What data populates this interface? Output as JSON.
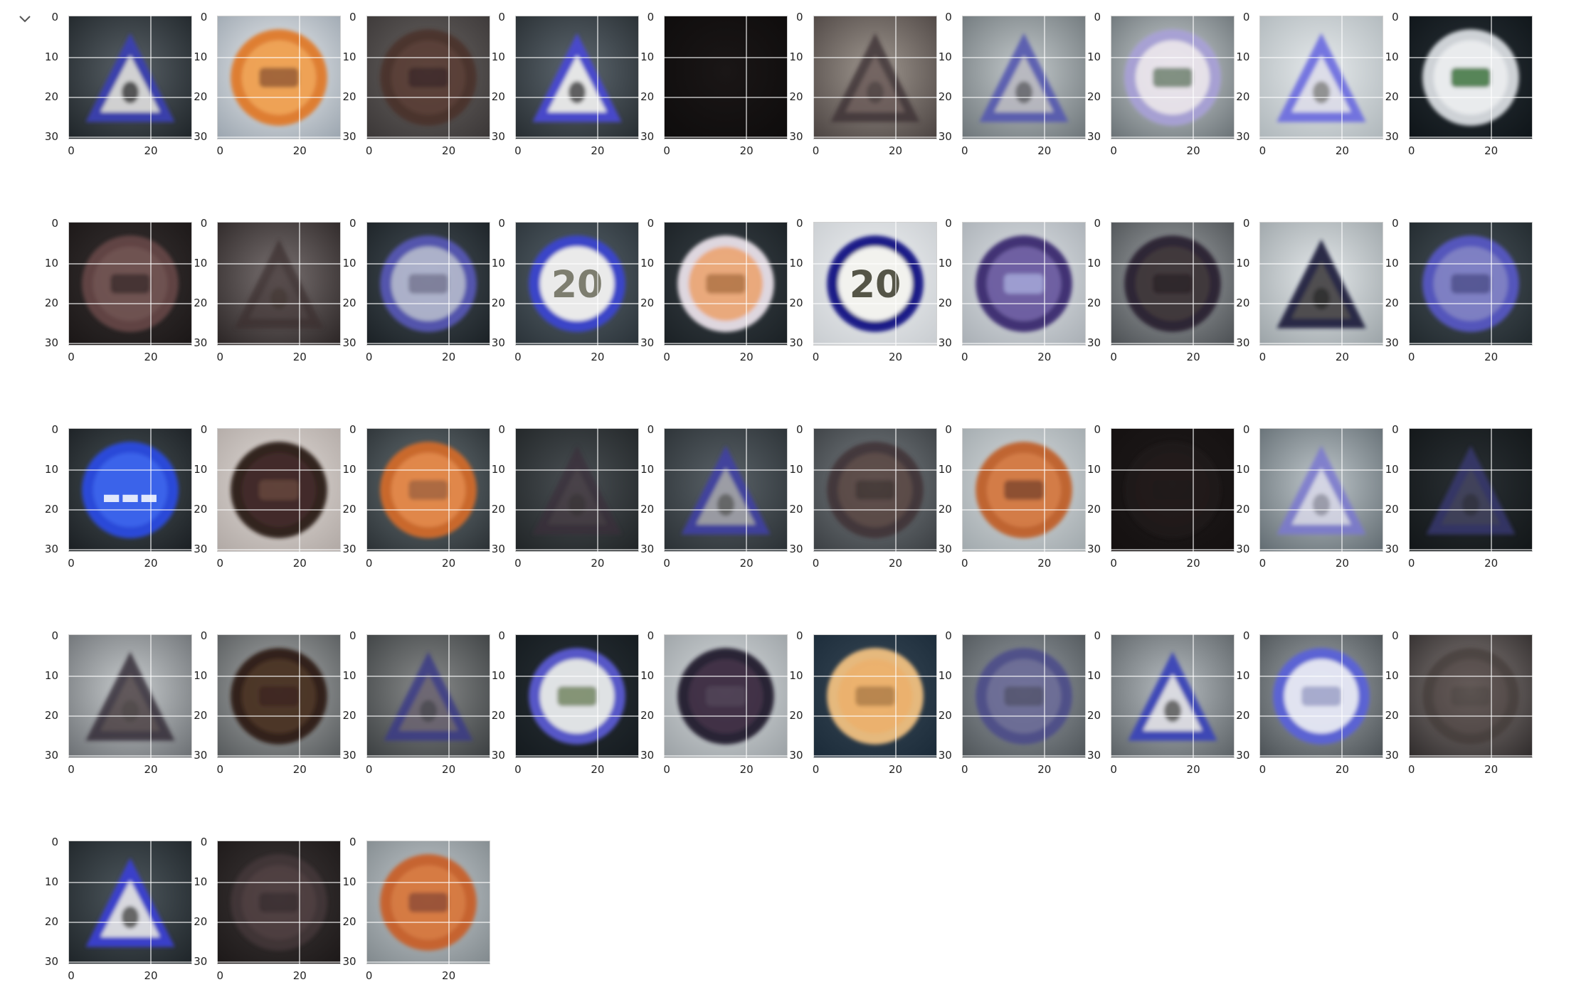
{
  "cell": {
    "collapse_icon": "chevron-down-icon"
  },
  "axes": {
    "y_ticks": [
      "0",
      "10",
      "20",
      "30"
    ],
    "x_ticks": [
      "0",
      "20"
    ]
  },
  "palette": {
    "grid": "#ffffff",
    "frame": "#d0d0d0",
    "tick_text": "#222222"
  },
  "images": [
    {
      "bg": [
        "#5a6268",
        "#1e2428"
      ],
      "shape": "triangle",
      "rim": "#3a3fb0",
      "fill": "#d8d8d8",
      "glyph": "#555555",
      "opacity": 0.95
    },
    {
      "bg": [
        "#eef0f2",
        "#9aa4ae"
      ],
      "shape": "circle",
      "rim": "#e07a2a",
      "fill": "#f0a050",
      "glyph": "#a06030",
      "opacity": 0.95
    },
    {
      "bg": [
        "#6a6664",
        "#3a3636"
      ],
      "shape": "circle",
      "rim": "#4a2e26",
      "fill": "#5a3a30",
      "glyph": "#3a2420",
      "opacity": 0.8
    },
    {
      "bg": [
        "#5e6870",
        "#262c30"
      ],
      "shape": "triangle",
      "rim": "#4a4ad0",
      "fill": "#ececec",
      "glyph": "#606060",
      "opacity": 0.95
    },
    {
      "bg": [
        "#1a1616",
        "#0e0c0c"
      ],
      "shape": "none",
      "rim": "#000000",
      "fill": "#000000",
      "glyph": "#000000",
      "opacity": 0
    },
    {
      "bg": [
        "#a09890",
        "#4a4240"
      ],
      "shape": "triangle",
      "rim": "#3c3236",
      "fill": "#6a5a58",
      "glyph": "#4a3e3c",
      "opacity": 0.8
    },
    {
      "bg": [
        "#c4cacc",
        "#6c7478"
      ],
      "shape": "triangle",
      "rim": "#5458b0",
      "fill": "#b8b8c0",
      "glyph": "#6a6a70",
      "opacity": 0.9
    },
    {
      "bg": [
        "#d0d6d8",
        "#687074"
      ],
      "shape": "circle",
      "rim": "#a8a0d8",
      "fill": "#ece6ee",
      "glyph": "#7a8a7a",
      "opacity": 0.9
    },
    {
      "bg": [
        "#e6eaec",
        "#aeb6ba"
      ],
      "shape": "triangle",
      "rim": "#6a6ae0",
      "fill": "#dcdce8",
      "glyph": "#8a8a8a",
      "opacity": 0.9
    },
    {
      "bg": [
        "#2a3238",
        "#0e1418"
      ],
      "shape": "circle",
      "rim": "#d8dce0",
      "fill": "#f4f6f8",
      "glyph": "#5a8a5a",
      "opacity": 0.95
    },
    {
      "bg": [
        "#3a3434",
        "#1a1616"
      ],
      "shape": "circle",
      "rim": "#6a4a4a",
      "fill": "#7a5a58",
      "glyph": "#4a3434",
      "opacity": 0.85
    },
    {
      "bg": [
        "#7a7272",
        "#2a2424"
      ],
      "shape": "triangle",
      "rim": "#3a2e2e",
      "fill": "#4a3e3c",
      "glyph": "#3a2e2c",
      "opacity": 0.7
    },
    {
      "bg": [
        "#48525a",
        "#1a2024"
      ],
      "shape": "circle",
      "rim": "#5a5ac0",
      "fill": "#c0c4e0",
      "glyph": "#8a8aa8",
      "opacity": 0.85
    },
    {
      "bg": [
        "#5a666e",
        "#2a3238"
      ],
      "shape": "circle",
      "rim": "#3a44c8",
      "fill": "#eaeaea",
      "glyph": "#6a6a5a",
      "opacity": 1,
      "label": "20"
    },
    {
      "bg": [
        "#3a4248",
        "#1a2024"
      ],
      "shape": "circle",
      "rim": "#e8e0e8",
      "fill": "#f4b080",
      "glyph": "#c08050",
      "opacity": 0.95
    },
    {
      "bg": [
        "#f0f2f4",
        "#c8ccd0"
      ],
      "shape": "circle",
      "rim": "#1a1e88",
      "fill": "#f2f2ee",
      "glyph": "#3a3a2a",
      "opacity": 1,
      "label": "20"
    },
    {
      "bg": [
        "#e0e4e8",
        "#a8aeb4"
      ],
      "shape": "circle",
      "rim": "#3a2a70",
      "fill": "#6a5aa0",
      "glyph": "#9a9ad0",
      "opacity": 0.95
    },
    {
      "bg": [
        "#a6aaac",
        "#4a4e52"
      ],
      "shape": "circle",
      "rim": "#2a2430",
      "fill": "#3e3438",
      "glyph": "#2a2426",
      "opacity": 0.95
    },
    {
      "bg": [
        "#e4e8ea",
        "#9aa2a6"
      ],
      "shape": "triangle",
      "rim": "#202440",
      "fill": "#4a4648",
      "glyph": "#2a2a2a",
      "opacity": 0.95
    },
    {
      "bg": [
        "#4a545c",
        "#20282c"
      ],
      "shape": "circle",
      "rim": "#5a5ad0",
      "fill": "#8a8ad8",
      "glyph": "#5a5aa0",
      "opacity": 0.85
    },
    {
      "bg": [
        "#4a5458",
        "#1a1e22"
      ],
      "shape": "circle",
      "rim": "#2a4ad8",
      "fill": "#3a64ea",
      "glyph": "#ffffff",
      "opacity": 1,
      "label": "▬▬▬"
    },
    {
      "bg": [
        "#e2dcd8",
        "#b0a8a4"
      ],
      "shape": "circle",
      "rim": "#2a1a18",
      "fill": "#3a2420",
      "glyph": "#5a3a30",
      "opacity": 0.95
    },
    {
      "bg": [
        "#6a7478",
        "#2a3034"
      ],
      "shape": "circle",
      "rim": "#d06a2a",
      "fill": "#e88a48",
      "glyph": "#b06a40",
      "opacity": 0.95
    },
    {
      "bg": [
        "#4a5054",
        "#202426"
      ],
      "shape": "triangle",
      "rim": "#3a2e3a",
      "fill": "#4a3e44",
      "glyph": "#3a3034",
      "opacity": 0.7
    },
    {
      "bg": [
        "#5a6268",
        "#2a3034"
      ],
      "shape": "triangle",
      "rim": "#4040a8",
      "fill": "#a8a8b0",
      "glyph": "#6a6a6a",
      "opacity": 0.85
    },
    {
      "bg": [
        "#7a8084",
        "#3a3e42"
      ],
      "shape": "circle",
      "rim": "#3e2e30",
      "fill": "#5a4440",
      "glyph": "#3e2e2c",
      "opacity": 0.8
    },
    {
      "bg": [
        "#d8dcde",
        "#a0a8ac"
      ],
      "shape": "circle",
      "rim": "#c0602a",
      "fill": "#d47840",
      "glyph": "#8a4a2a",
      "opacity": 0.95
    },
    {
      "bg": [
        "#1e1a1a",
        "#141010"
      ],
      "shape": "circle",
      "rim": "#241c1c",
      "fill": "#281e1e",
      "glyph": "#241a1a",
      "opacity": 0.6
    },
    {
      "bg": [
        "#c0c8cc",
        "#606a70"
      ],
      "shape": "triangle",
      "rim": "#7a78d0",
      "fill": "#d8d8e8",
      "glyph": "#9898a8",
      "opacity": 0.85
    },
    {
      "bg": [
        "#2a3034",
        "#121618"
      ],
      "shape": "triangle",
      "rim": "#3a3a78",
      "fill": "#4a4a68",
      "glyph": "#38384a",
      "opacity": 0.75
    },
    {
      "bg": [
        "#c8ccce",
        "#6a6e72"
      ],
      "shape": "triangle",
      "rim": "#2e2630",
      "fill": "#4a3e40",
      "glyph": "#3a3032",
      "opacity": 0.8
    },
    {
      "bg": [
        "#aeb0b0",
        "#54585a"
      ],
      "shape": "circle",
      "rim": "#2e1e16",
      "fill": "#4a3024",
      "glyph": "#3a241a",
      "opacity": 0.95
    },
    {
      "bg": [
        "#8a8c8c",
        "#3a3e40"
      ],
      "shape": "triangle",
      "rim": "#3a3a86",
      "fill": "#6a6470",
      "glyph": "#4a4650",
      "opacity": 0.85
    },
    {
      "bg": [
        "#2a3238",
        "#141a1e"
      ],
      "shape": "circle",
      "rim": "#5a5ad0",
      "fill": "#eaecee",
      "glyph": "#8a9a7a",
      "opacity": 0.95
    },
    {
      "bg": [
        "#d8dcde",
        "#9aa0a4"
      ],
      "shape": "circle",
      "rim": "#221a2e",
      "fill": "#3a2a40",
      "glyph": "#4a3a50",
      "opacity": 0.95
    },
    {
      "bg": [
        "#3a4a58",
        "#1a2a38"
      ],
      "shape": "circle",
      "rim": "#f0c080",
      "fill": "#f6b870",
      "glyph": "#c08a50",
      "opacity": 0.95
    },
    {
      "bg": [
        "#9aa0a6",
        "#4e5458"
      ],
      "shape": "circle",
      "rim": "#4a4a8a",
      "fill": "#6a6a98",
      "glyph": "#50506e",
      "opacity": 0.85
    },
    {
      "bg": [
        "#b8bec2",
        "#5a6064"
      ],
      "shape": "triangle",
      "rim": "#3a44b8",
      "fill": "#dcdce2",
      "glyph": "#6a6a6a",
      "opacity": 0.95
    },
    {
      "bg": [
        "#a6acb0",
        "#4a5054"
      ],
      "shape": "circle",
      "rim": "#5a62d8",
      "fill": "#e6e8f6",
      "glyph": "#a8acd0",
      "opacity": 0.95
    },
    {
      "bg": [
        "#8a8280",
        "#2e2a2a"
      ],
      "shape": "circle",
      "rim": "#3e3432",
      "fill": "#4e4240",
      "glyph": "#3e3432",
      "opacity": 0.6
    },
    {
      "bg": [
        "#4e585e",
        "#1e2428"
      ],
      "shape": "triangle",
      "rim": "#3a3fd0",
      "fill": "#e0e0e6",
      "glyph": "#686868",
      "opacity": 0.95
    },
    {
      "bg": [
        "#3e3838",
        "#1c1818"
      ],
      "shape": "circle",
      "rim": "#4a3a3c",
      "fill": "#5a4648",
      "glyph": "#403234",
      "opacity": 0.7
    },
    {
      "bg": [
        "#c6ccd0",
        "#80888c"
      ],
      "shape": "circle",
      "rim": "#c8602a",
      "fill": "#d8783c",
      "glyph": "#9a5030",
      "opacity": 0.95
    }
  ]
}
